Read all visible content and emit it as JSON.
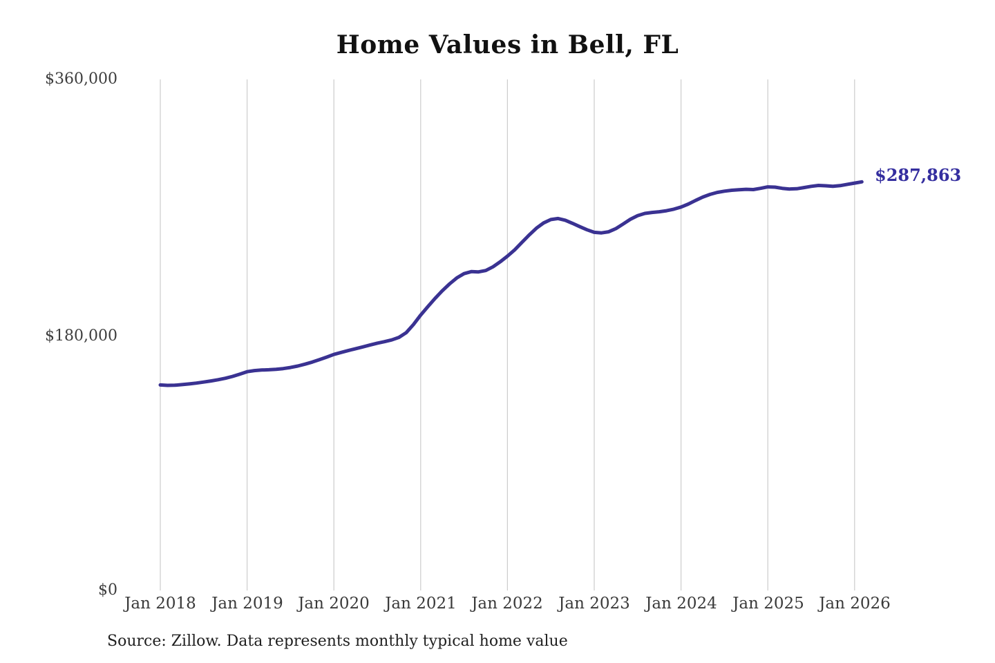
{
  "title": "Home Values in Bell, FL",
  "annotation": {
    "end_value_label": "$287,863"
  },
  "source_note": "Source: Zillow. Data represents monthly typical home value",
  "colors": {
    "line": "#3a3292",
    "end_label": "#342e9f",
    "grid": "#cccccc",
    "axis_text": "#3d3d3d",
    "title_text": "#111111"
  },
  "chart_data": {
    "type": "line",
    "title": "Home Values in Bell, FL",
    "xlabel": "",
    "ylabel": "",
    "ylim": [
      0,
      360000
    ],
    "grid": "vertical-only",
    "legend": "none",
    "y_ticks": [
      {
        "value": 0,
        "label": "$0"
      },
      {
        "value": 180000,
        "label": "$180,000"
      },
      {
        "value": 360000,
        "label": "$360,000"
      }
    ],
    "y_tick_labels": [
      "$0",
      "$180,000",
      "$360,000"
    ],
    "x_tick_labels": [
      "Jan 2018",
      "Jan 2019",
      "Jan 2020",
      "Jan 2021",
      "Jan 2022",
      "Jan 2023",
      "Jan 2024",
      "Jan 2025",
      "Jan 2026"
    ],
    "end_label": "$287,863",
    "source_note": "Source: Zillow. Data represents monthly typical home value",
    "series": [
      {
        "name": "Monthly typical home value",
        "color": "#3a3292",
        "x": [
          "2018-01",
          "2018-02",
          "2018-03",
          "2018-04",
          "2018-05",
          "2018-06",
          "2018-07",
          "2018-08",
          "2018-09",
          "2018-10",
          "2018-11",
          "2018-12",
          "2019-01",
          "2019-02",
          "2019-03",
          "2019-04",
          "2019-05",
          "2019-06",
          "2019-07",
          "2019-08",
          "2019-09",
          "2019-10",
          "2019-11",
          "2019-12",
          "2020-01",
          "2020-02",
          "2020-03",
          "2020-04",
          "2020-05",
          "2020-06",
          "2020-07",
          "2020-08",
          "2020-09",
          "2020-10",
          "2020-11",
          "2020-12",
          "2021-01",
          "2021-02",
          "2021-03",
          "2021-04",
          "2021-05",
          "2021-06",
          "2021-07",
          "2021-08",
          "2021-09",
          "2021-10",
          "2021-11",
          "2021-12",
          "2022-01",
          "2022-02",
          "2022-03",
          "2022-04",
          "2022-05",
          "2022-06",
          "2022-07",
          "2022-08",
          "2022-09",
          "2022-10",
          "2022-11",
          "2022-12",
          "2023-01",
          "2023-02",
          "2023-03",
          "2023-04",
          "2023-05",
          "2023-06",
          "2023-07",
          "2023-08",
          "2023-09",
          "2023-10",
          "2023-11",
          "2023-12",
          "2024-01",
          "2024-02",
          "2024-03",
          "2024-04",
          "2024-05",
          "2024-06",
          "2024-07",
          "2024-08",
          "2024-09",
          "2024-10",
          "2024-11",
          "2024-12",
          "2025-01",
          "2025-02",
          "2025-03",
          "2025-04",
          "2025-05",
          "2025-06",
          "2025-07",
          "2025-08",
          "2025-09",
          "2025-10",
          "2025-11",
          "2025-12",
          "2026-01",
          "2026-02"
        ],
        "values": [
          144800,
          144500,
          144600,
          145000,
          145500,
          146100,
          146800,
          147600,
          148500,
          149500,
          150800,
          152400,
          154100,
          154900,
          155300,
          155500,
          155800,
          156300,
          157100,
          158100,
          159400,
          160900,
          162600,
          164400,
          166300,
          167700,
          169000,
          170300,
          171600,
          172900,
          174200,
          175300,
          176500,
          178300,
          181600,
          187300,
          194000,
          200000,
          205800,
          211200,
          216000,
          220200,
          223200,
          224600,
          224400,
          225400,
          228000,
          231500,
          235500,
          240000,
          245200,
          250400,
          255200,
          258900,
          261300,
          262000,
          260800,
          258600,
          256300,
          254100,
          252300,
          251900,
          252700,
          254900,
          258200,
          261500,
          264000,
          265600,
          266300,
          266800,
          267500,
          268600,
          270100,
          272200,
          274700,
          277100,
          279000,
          280400,
          281300,
          281900,
          282300,
          282600,
          282400,
          283300,
          284300,
          284100,
          283300,
          282800,
          283000,
          283800,
          284700,
          285300,
          285100,
          284700,
          285200,
          286100,
          287000,
          287863
        ]
      }
    ]
  }
}
